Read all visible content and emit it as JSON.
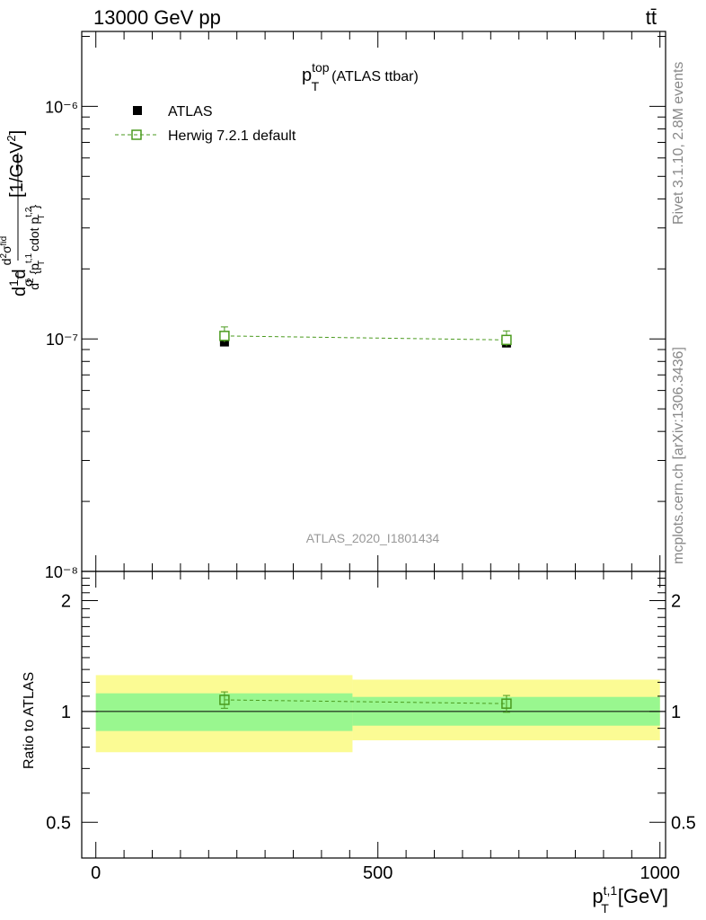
{
  "header": {
    "left": "13000 GeV pp",
    "right": "tt̄"
  },
  "side_labels": {
    "rivet": "Rivet 3.1.10,  2.8M events",
    "mcplots": "mcplots.cern.ch [arXiv:1306.3436]"
  },
  "chart_data": [
    {
      "type": "scatter",
      "title": "p_T^top (ATLAS ttbar)",
      "watermark": "ATLAS_2020_I1801434",
      "ylabel": "d1/σ dd²σ^fid / d² {p_T^t,1 cdot p_T^t,2} [1/GeV²]",
      "xlim": [
        -25,
        1010
      ],
      "ylim": [
        1e-08,
        2.1e-06
      ],
      "yscale": "log",
      "yticks": [
        {
          "value": 1e-08,
          "label": "10⁻⁸"
        },
        {
          "value": 1e-07,
          "label": "10⁻⁷"
        },
        {
          "value": 1e-06,
          "label": "10⁻⁶"
        }
      ],
      "legend_position": "top-left",
      "series": [
        {
          "name": "ATLAS",
          "marker": "filled-square",
          "color": "#000000",
          "x": [
            228,
            728
          ],
          "y": [
            9.7e-08,
            9.6e-08
          ],
          "xerr": [
            [
              0,
              455
            ],
            [
              455,
              1000
            ]
          ]
        },
        {
          "name": "Herwig 7.2.1 default",
          "marker": "open-square",
          "color": "#4a9a1e",
          "linestyle": "dashed",
          "x": [
            228,
            728
          ],
          "y": [
            1.03e-07,
            9.9e-08
          ]
        }
      ]
    },
    {
      "type": "scatter",
      "xlabel": "p_T^t,1 [GeV]",
      "ylabel": "Ratio to ATLAS",
      "xlim": [
        -25,
        1010
      ],
      "ylim": [
        0.4,
        2.4
      ],
      "yscale": "log",
      "xticks": [
        0,
        500,
        1000
      ],
      "yticks": [
        {
          "value": 0.5,
          "label": "0.5"
        },
        {
          "value": 1,
          "label": "1"
        },
        {
          "value": 2,
          "label": "2"
        }
      ],
      "bands": [
        {
          "x": [
            0,
            455
          ],
          "stat": [
            0.885,
            1.12
          ],
          "total": [
            0.775,
            1.255
          ]
        },
        {
          "x": [
            455,
            1000
          ],
          "stat": [
            0.915,
            1.095
          ],
          "total": [
            0.835,
            1.22
          ]
        }
      ],
      "band_colors": {
        "stat": "#99f78f",
        "total": "#fbfb94"
      },
      "series": [
        {
          "name": "Herwig 7.2.1 default",
          "marker": "open-square",
          "color": "#4a9a1e",
          "linestyle": "dashed",
          "x": [
            228,
            728
          ],
          "y": [
            1.075,
            1.05
          ],
          "yerr": [
            0.055,
            0.055
          ]
        }
      ]
    }
  ]
}
